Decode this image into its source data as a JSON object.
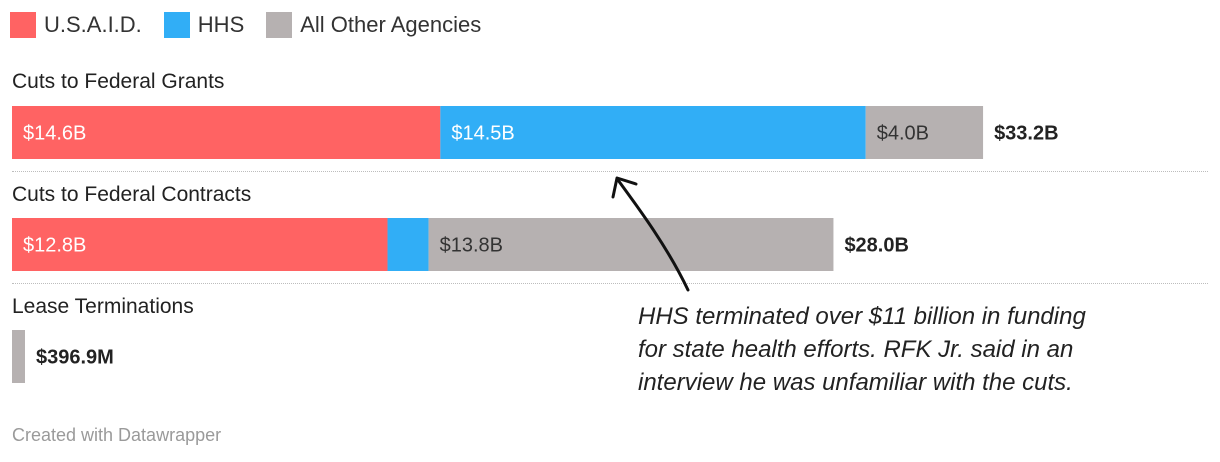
{
  "chart_data": {
    "type": "bar",
    "orientation": "horizontal",
    "stacked": true,
    "unit": "billions USD",
    "legend": [
      {
        "name": "U.S.A.I.D.",
        "color": "#ff6363"
      },
      {
        "name": "HHS",
        "color": "#31aef6"
      },
      {
        "name": "All Other Agencies",
        "color": "#b6b1b1"
      }
    ],
    "xlim": [
      0,
      33.2
    ],
    "rows": [
      {
        "label": "Cuts to Federal Grants",
        "total_label": "$33.2B",
        "total": 33.2,
        "segments": [
          {
            "series": "U.S.A.I.D.",
            "value": 14.6,
            "label": "$14.6B"
          },
          {
            "series": "HHS",
            "value": 14.5,
            "label": "$14.5B"
          },
          {
            "series": "All Other Agencies",
            "value": 4.0,
            "label": "$4.0B"
          }
        ]
      },
      {
        "label": "Cuts to Federal Contracts",
        "total_label": "$28.0B",
        "total": 28.0,
        "segments": [
          {
            "series": "U.S.A.I.D.",
            "value": 12.8,
            "label": "$12.8B"
          },
          {
            "series": "HHS",
            "value": 1.4,
            "label": ""
          },
          {
            "series": "All Other Agencies",
            "value": 13.8,
            "label": "$13.8B"
          }
        ]
      },
      {
        "label": "Lease Terminations",
        "total_label": "$396.9M",
        "total": 0.3969,
        "segments": [
          {
            "series": "All Other Agencies",
            "value": 0.3969,
            "label": ""
          }
        ]
      }
    ]
  },
  "annotation": "HHS terminated over $11 billion in funding for state health efforts. RFK Jr. said in an interview he was unfamiliar with the cuts.",
  "credit": "Created with Datawrapper"
}
